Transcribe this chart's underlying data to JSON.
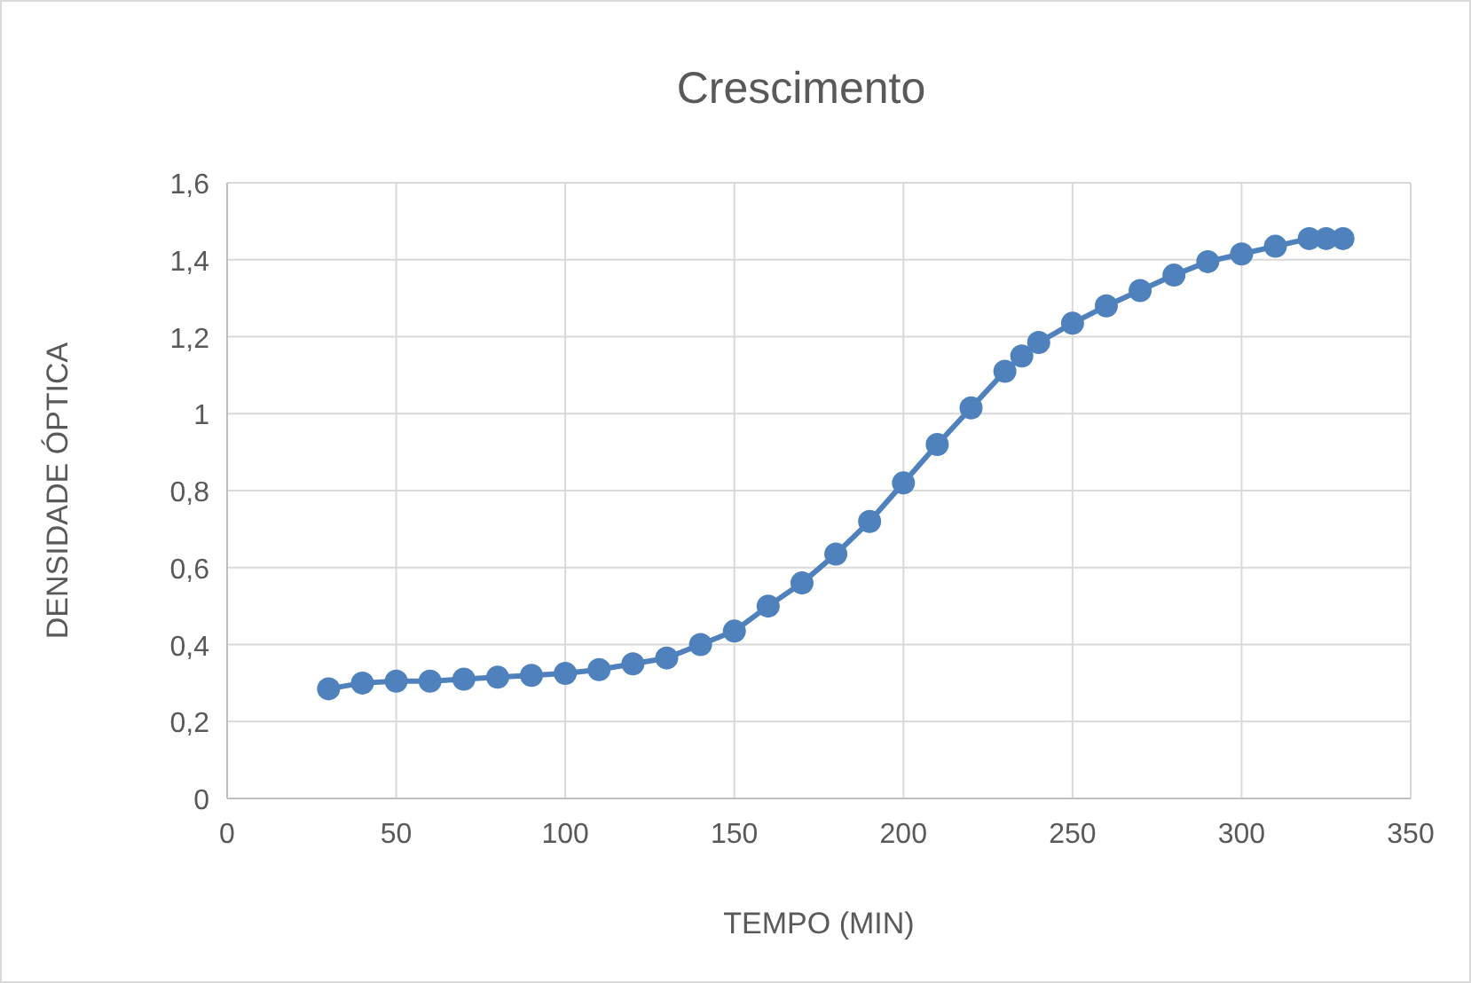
{
  "chart_data": {
    "type": "line",
    "title": "Crescimento",
    "xlabel": "TEMPO (MIN)",
    "ylabel": "DENSIDADE ÓPTICA",
    "x": [
      30,
      40,
      50,
      60,
      70,
      80,
      90,
      100,
      110,
      120,
      130,
      140,
      150,
      160,
      170,
      180,
      190,
      200,
      210,
      220,
      230,
      235,
      240,
      250,
      260,
      270,
      280,
      290,
      300,
      310,
      320,
      325,
      330
    ],
    "series": [
      {
        "color": "#4f81bd",
        "values": [
          0.285,
          0.3,
          0.305,
          0.305,
          0.31,
          0.315,
          0.32,
          0.325,
          0.335,
          0.35,
          0.365,
          0.4,
          0.435,
          0.5,
          0.56,
          0.635,
          0.72,
          0.82,
          0.92,
          1.015,
          1.11,
          1.15,
          1.185,
          1.235,
          1.28,
          1.32,
          1.36,
          1.395,
          1.415,
          1.435,
          1.455,
          1.455,
          1.455
        ]
      }
    ],
    "xlim": [
      0,
      350
    ],
    "xticks": [
      0,
      50,
      100,
      150,
      200,
      250,
      300,
      350
    ],
    "ylim": [
      0,
      1.6
    ],
    "yticks": [
      {
        "value": 0,
        "label": "0"
      },
      {
        "value": 0.2,
        "label": "0,2"
      },
      {
        "value": 0.4,
        "label": "0,4"
      },
      {
        "value": 0.6,
        "label": "0,6"
      },
      {
        "value": 0.8,
        "label": "0,8"
      },
      {
        "value": 1,
        "label": "1"
      },
      {
        "value": 1.2,
        "label": "1,2"
      },
      {
        "value": 1.4,
        "label": "1,4"
      },
      {
        "value": 1.6,
        "label": "1,6"
      }
    ],
    "grid": true,
    "marker": "circle",
    "line_style": "solid"
  }
}
